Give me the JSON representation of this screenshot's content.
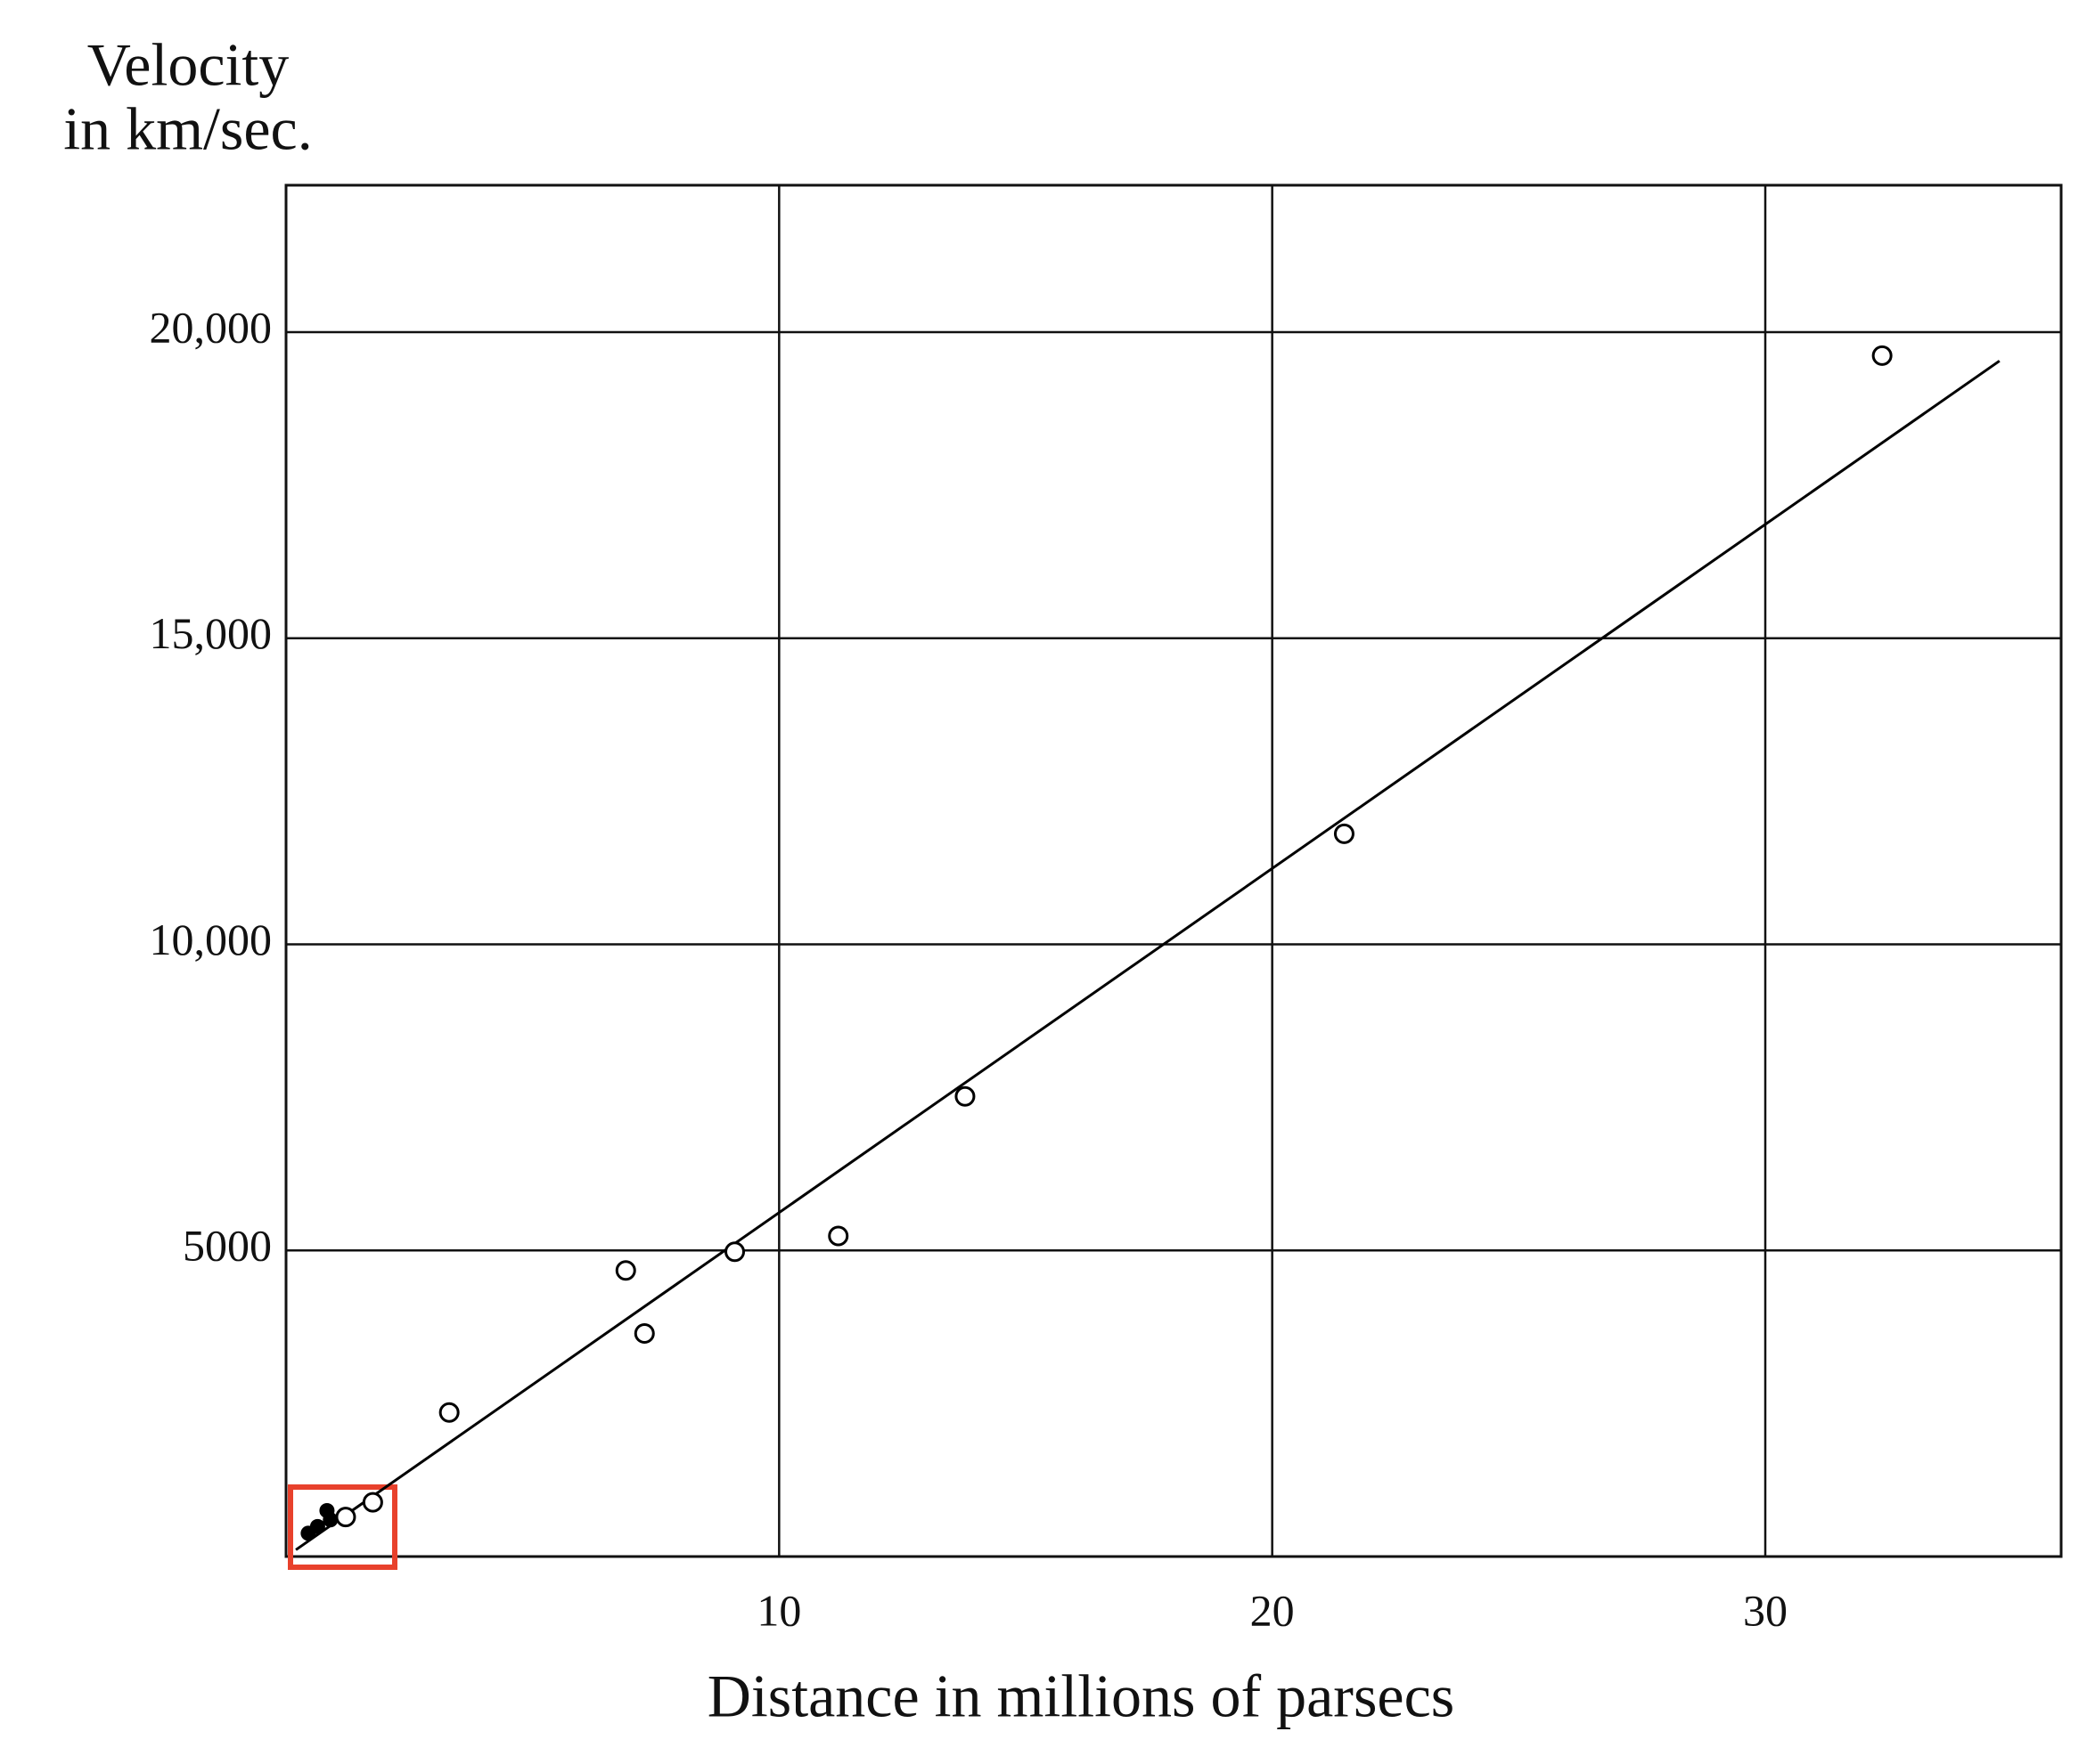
{
  "chart_data": {
    "type": "scatter",
    "y_label": [
      "Velocity",
      "in km/sec."
    ],
    "x_label": "Distance in millions of parsecs",
    "series": [
      {
        "marker": "open",
        "color": "#000000",
        "x": [
          1.21,
          1.76,
          3.31,
          6.89,
          7.27,
          9.1,
          11.2,
          13.77,
          21.46,
          32.37
        ],
        "values": [
          645,
          886,
          2352,
          4672,
          3643,
          4978,
          5236,
          7516,
          11805,
          19617
        ]
      },
      {
        "marker": "filled",
        "color": "#000000",
        "x": [
          0.45,
          0.64,
          0.83,
          0.9
        ],
        "values": [
          380,
          490,
          750,
          600
        ]
      }
    ],
    "fit_line": {
      "color": "#000000",
      "x": [
        0.2,
        34.75
      ],
      "values": [
        110,
        19530
      ]
    },
    "xlim": [
      0,
      36
    ],
    "ylim": [
      0,
      22400
    ],
    "xticks": [
      10,
      20,
      30
    ],
    "yticks": [
      5000,
      {
        "value": 10000,
        "label": "10,000"
      },
      {
        "value": 15000,
        "label": "15,000"
      },
      {
        "value": 20000,
        "label": "20,000"
      }
    ],
    "grid": true
  }
}
